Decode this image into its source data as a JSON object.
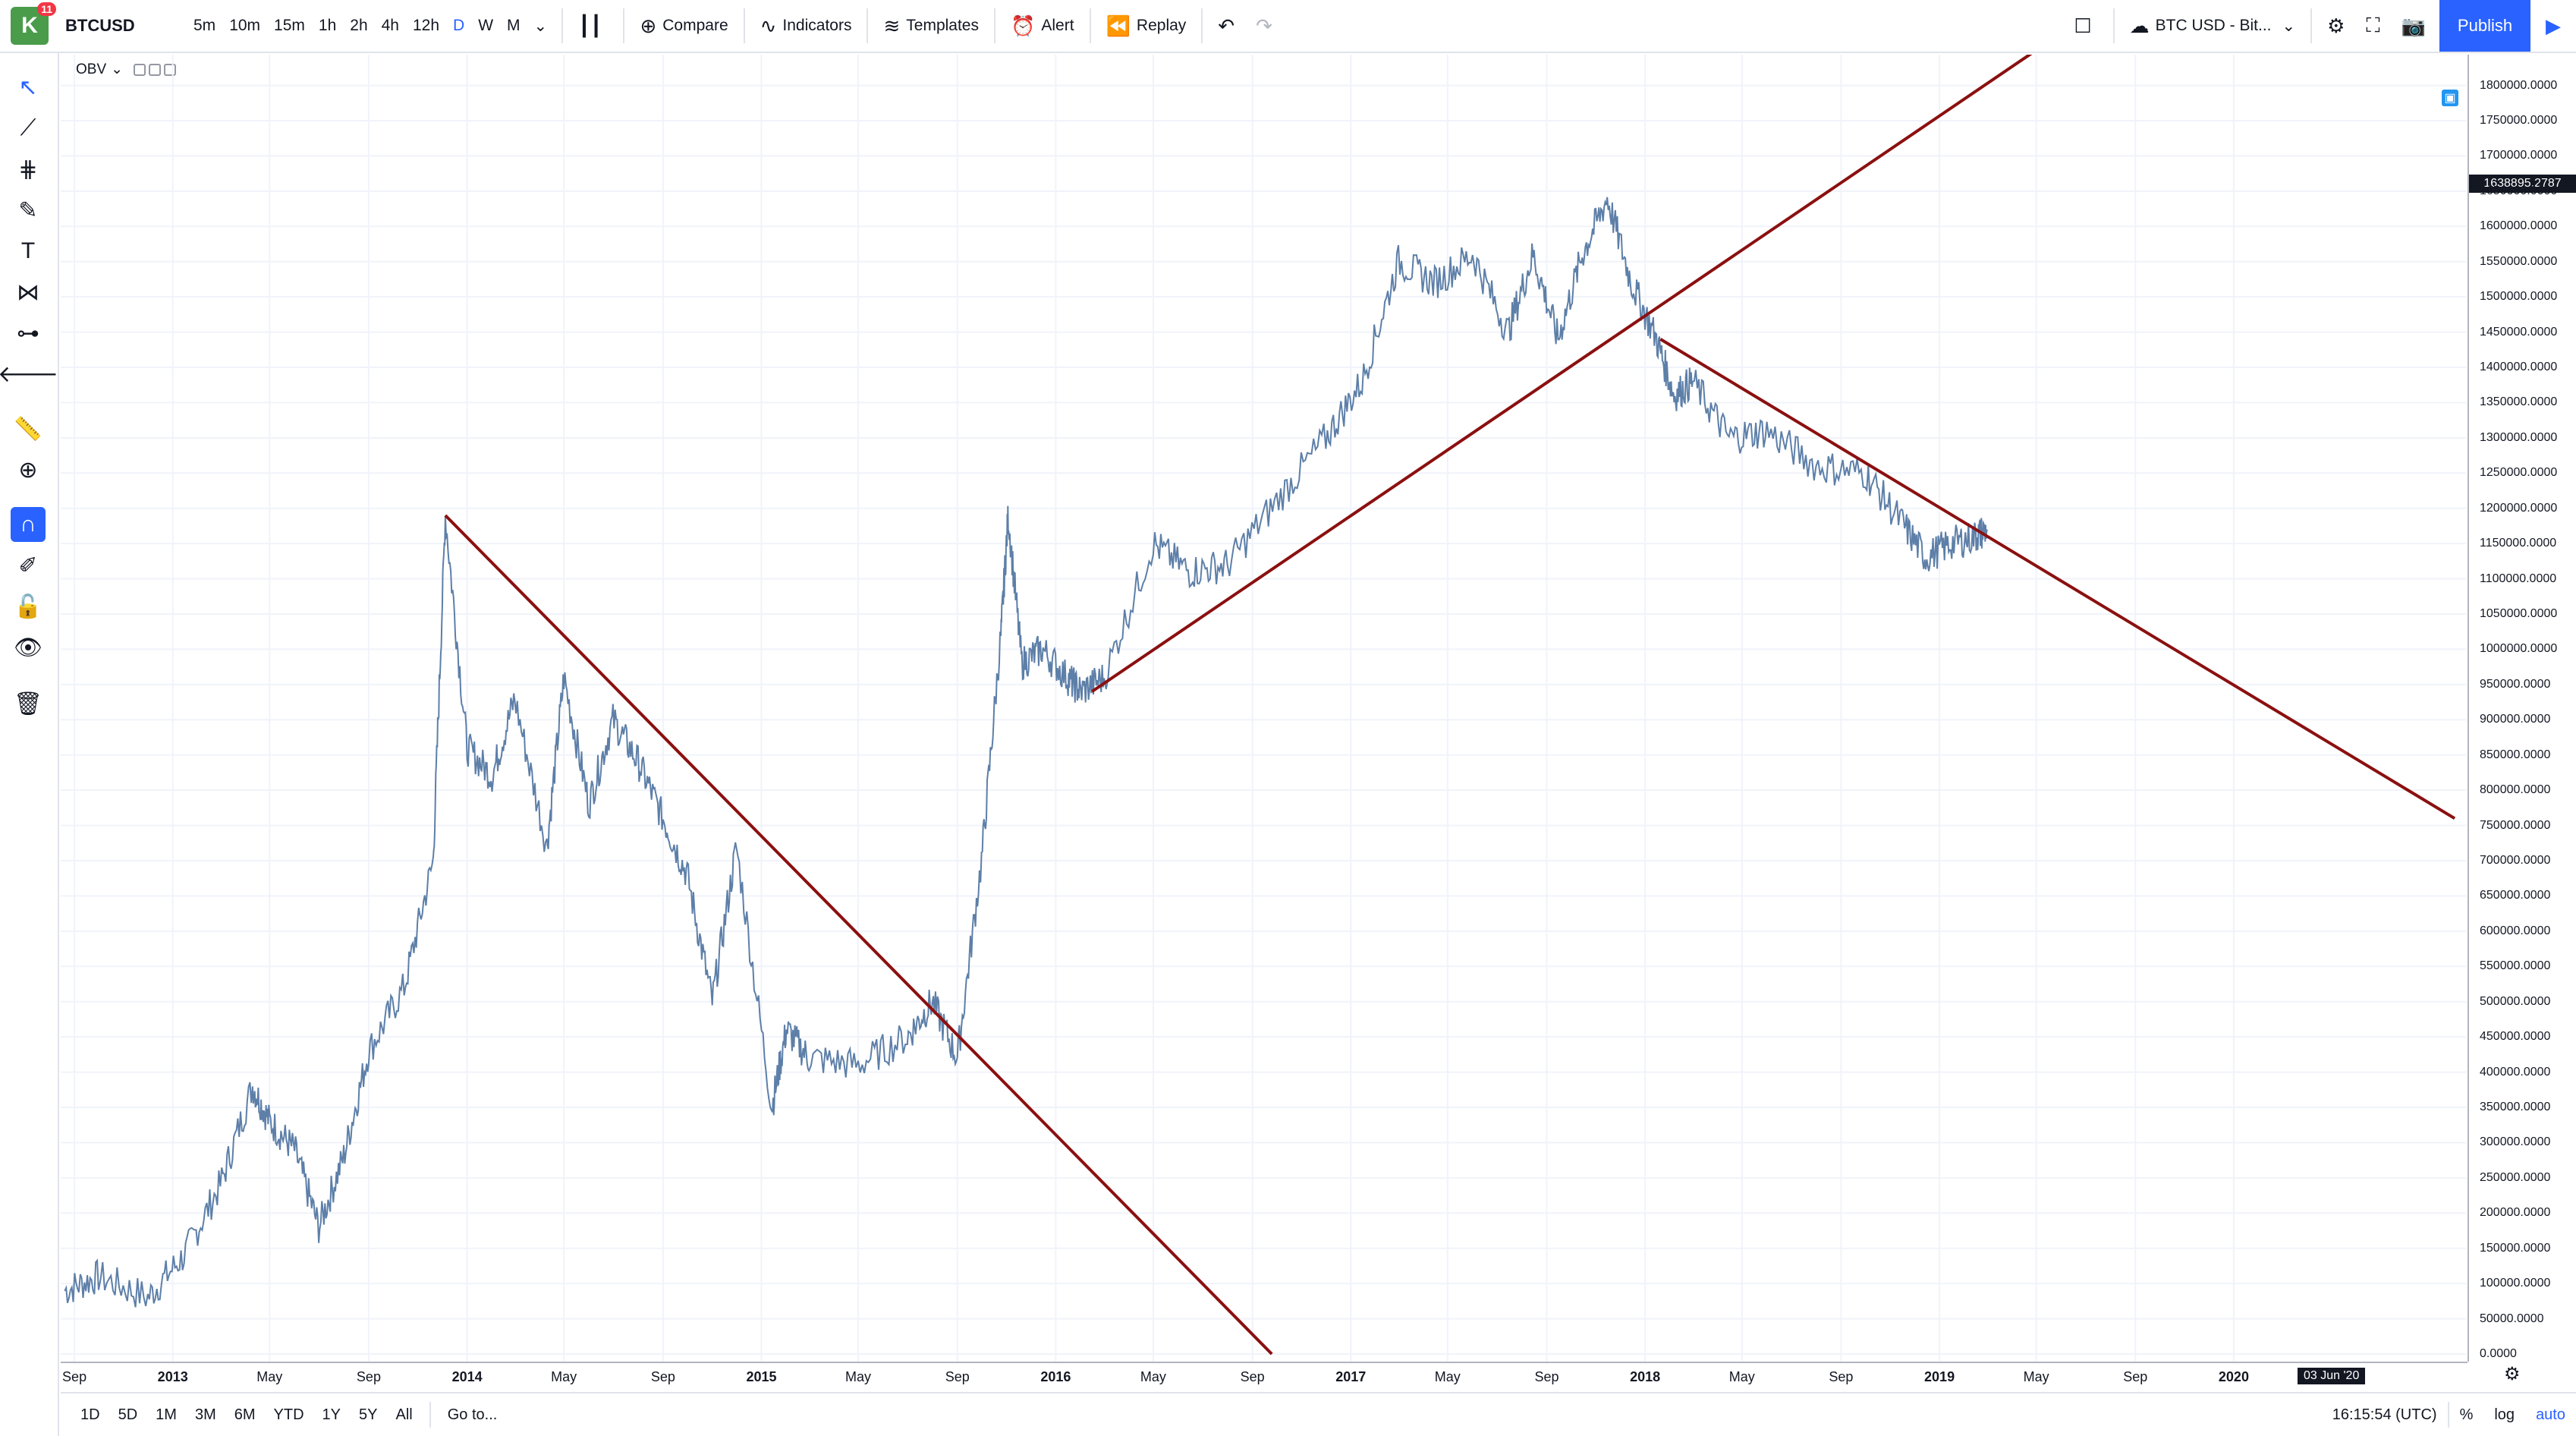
{
  "topbar": {
    "logo_text": "K",
    "logo_badge": "11",
    "symbol": "BTCUSD",
    "intervals": [
      "5m",
      "10m",
      "15m",
      "1h",
      "2h",
      "4h",
      "12h",
      "D",
      "W",
      "M"
    ],
    "active_interval": "D",
    "compare_label": "Compare",
    "indicators_label": "Indicators",
    "templates_label": "Templates",
    "alert_label": "Alert",
    "replay_label": "Replay",
    "source_label": "BTC USD - Bit...",
    "publish_label": "Publish"
  },
  "indicator": {
    "name": "OBV"
  },
  "price_axis": {
    "current_value": "1638895.2787",
    "labels": [
      "1800000.0000",
      "1750000.0000",
      "1700000.0000",
      "1650000.0000",
      "1600000.0000",
      "1550000.0000",
      "1500000.0000",
      "1450000.0000",
      "1400000.0000",
      "1350000.0000",
      "1300000.0000",
      "1250000.0000",
      "1200000.0000",
      "1150000.0000",
      "1100000.0000",
      "1050000.0000",
      "1000000.0000",
      "950000.0000",
      "900000.0000",
      "850000.0000",
      "800000.0000",
      "750000.0000",
      "700000.0000",
      "650000.0000",
      "600000.0000",
      "550000.0000",
      "500000.0000",
      "450000.0000",
      "400000.0000",
      "350000.0000",
      "300000.0000",
      "250000.0000",
      "200000.0000",
      "150000.0000",
      "100000.0000",
      "50000.0000",
      "0.0000"
    ]
  },
  "time_axis": {
    "labels": [
      {
        "text": "Sep",
        "bold": false
      },
      {
        "text": "2013",
        "bold": true
      },
      {
        "text": "May",
        "bold": false
      },
      {
        "text": "Sep",
        "bold": false
      },
      {
        "text": "2014",
        "bold": true
      },
      {
        "text": "May",
        "bold": false
      },
      {
        "text": "Sep",
        "bold": false
      },
      {
        "text": "2015",
        "bold": true
      },
      {
        "text": "May",
        "bold": false
      },
      {
        "text": "Sep",
        "bold": false
      },
      {
        "text": "2016",
        "bold": true
      },
      {
        "text": "May",
        "bold": false
      },
      {
        "text": "Sep",
        "bold": false
      },
      {
        "text": "2017",
        "bold": true
      },
      {
        "text": "May",
        "bold": false
      },
      {
        "text": "Sep",
        "bold": false
      },
      {
        "text": "2018",
        "bold": true
      },
      {
        "text": "May",
        "bold": false
      },
      {
        "text": "Sep",
        "bold": false
      },
      {
        "text": "2019",
        "bold": true
      },
      {
        "text": "May",
        "bold": false
      },
      {
        "text": "Sep",
        "bold": false
      },
      {
        "text": "2020",
        "bold": true
      }
    ],
    "date_badge": "03 Jun '20"
  },
  "bottombar": {
    "ranges": [
      "1D",
      "5D",
      "1M",
      "3M",
      "6M",
      "YTD",
      "1Y",
      "5Y",
      "All"
    ],
    "goto_label": "Go to...",
    "time": "16:15:54 (UTC)",
    "percent_label": "%",
    "log_label": "log",
    "auto_label": "auto"
  },
  "chart_data": {
    "type": "line",
    "series": [
      {
        "x": [
          "2012-08-20",
          "2012-10-01",
          "2012-12-01",
          "2013-01-15",
          "2013-03-01",
          "2013-04-10",
          "2013-05-01",
          "2013-06-01",
          "2013-07-01",
          "2013-08-01",
          "2013-09-01",
          "2013-10-15",
          "2013-11-20",
          "2013-12-05",
          "2014-01-01",
          "2014-02-01",
          "2014-03-01",
          "2014-04-10",
          "2014-05-01",
          "2014-06-01",
          "2014-07-01",
          "2014-08-01",
          "2014-09-01",
          "2014-10-01",
          "2014-11-01",
          "2014-12-01",
          "2015-01-14",
          "2015-02-01",
          "2015-03-01",
          "2015-05-01",
          "2015-07-01",
          "2015-08-01",
          "2015-09-01",
          "2015-10-01",
          "2015-10-25",
          "2015-11-03",
          "2015-11-20",
          "2015-12-15",
          "2016-01-15",
          "2016-02-01",
          "2016-03-01",
          "2016-05-01",
          "2016-06-15",
          "2016-08-01",
          "2016-10-01",
          "2016-12-01",
          "2017-01-15",
          "2017-03-01",
          "2017-04-15",
          "2017-06-01",
          "2017-07-15",
          "2017-08-15",
          "2017-09-15",
          "2017-10-15",
          "2017-11-15",
          "2017-12-15",
          "2018-01-15",
          "2018-02-06",
          "2018-03-01",
          "2018-04-15",
          "2018-06-01",
          "2018-08-01",
          "2018-10-01",
          "2018-11-15",
          "2018-12-15",
          "2019-01-15",
          "2019-02-15",
          "2019-03-01"
        ],
        "values": [
          90000,
          110000,
          80000,
          140000,
          240000,
          380000,
          330000,
          290000,
          180000,
          280000,
          430000,
          520000,
          700000,
          1190000,
          860000,
          820000,
          930000,
          720000,
          960000,
          780000,
          900000,
          840000,
          760000,
          680000,
          500000,
          720000,
          350000,
          460000,
          420000,
          410000,
          450000,
          500000,
          420000,
          700000,
          1020000,
          1190000,
          980000,
          1000000,
          960000,
          940000,
          960000,
          1150000,
          1110000,
          1120000,
          1210000,
          1300000,
          1380000,
          1550000,
          1520000,
          1560000,
          1450000,
          1560000,
          1440000,
          1560000,
          1640000,
          1520000,
          1440000,
          1360000,
          1380000,
          1300000,
          1310000,
          1260000,
          1250000,
          1180000,
          1130000,
          1150000,
          1160000,
          1170000
        ]
      }
    ],
    "trendlines": [
      {
        "from": [
          "2013-12-05",
          1190000
        ],
        "to": [
          "2016-09-25",
          0
        ]
      },
      {
        "from": [
          "2016-02-15",
          940000
        ],
        "to": [
          "2019-05-01",
          1850000
        ]
      },
      {
        "from": [
          "2018-01-20",
          1440000
        ],
        "to": [
          "2020-10-01",
          760000
        ]
      }
    ],
    "xlim": [
      "2012-08-15",
      "2020-10-15"
    ],
    "ylim": [
      0,
      1820000
    ],
    "grid": true,
    "line_color": "#5d7fa8",
    "trendline_color": "#8b1010"
  }
}
